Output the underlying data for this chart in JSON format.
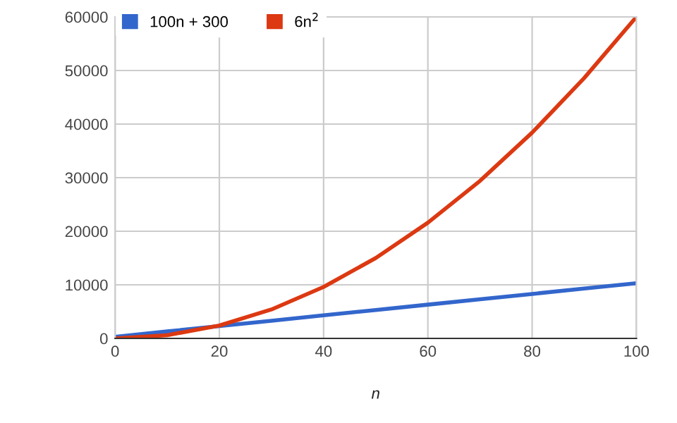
{
  "chart_data": {
    "type": "line",
    "xlabel": "n",
    "x": [
      0,
      10,
      20,
      30,
      40,
      50,
      60,
      70,
      80,
      90,
      100
    ],
    "series": [
      {
        "name": "100n + 300",
        "color": "#3366cc",
        "values": [
          300,
          1300,
          2300,
          3300,
          4300,
          5300,
          6300,
          7300,
          8300,
          9300,
          10300
        ]
      },
      {
        "name": "6n$^{2}$",
        "color": "#dc3912",
        "values": [
          0,
          600,
          2400,
          5400,
          9600,
          15000,
          21600,
          29400,
          38400,
          48600,
          60000
        ]
      }
    ],
    "xlim": [
      0,
      100
    ],
    "xticks": [
      0,
      20,
      40,
      60,
      80,
      100
    ],
    "ylim": [
      0,
      60000
    ],
    "yticks": [
      0,
      10000,
      20000,
      30000,
      40000,
      50000,
      60000
    ],
    "grid": true,
    "legend": "top left",
    "marker": "none",
    "line_style": "solid"
  }
}
